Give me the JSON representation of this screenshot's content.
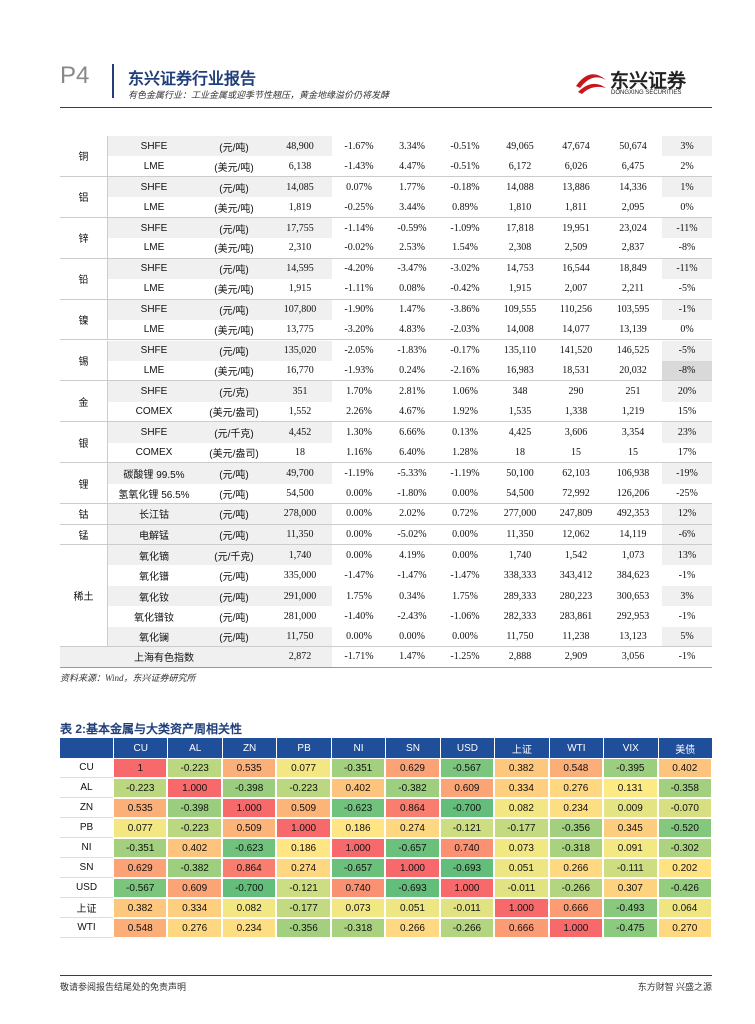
{
  "header": {
    "page": "P4",
    "title": "东兴证券行业报告",
    "subtitle": "有色金属行业：工业金属或迎季节性翘压，黄金地缘溢价仍将发酵",
    "logo_text": "东兴证券",
    "logo_sub": "DONGXING SECURITIES"
  },
  "table1": {
    "groups": [
      {
        "label": "铜",
        "rows": [
          [
            "SHFE",
            "(元/吨)",
            "48,900",
            "-1.67%",
            "3.34%",
            "-0.51%",
            "49,065",
            "47,674",
            "50,674",
            "3%"
          ],
          [
            "LME",
            "(美元/吨)",
            "6,138",
            "-1.43%",
            "4.47%",
            "-0.51%",
            "6,172",
            "6,026",
            "6,475",
            "2%"
          ]
        ]
      },
      {
        "label": "铝",
        "rows": [
          [
            "SHFE",
            "(元/吨)",
            "14,085",
            "0.07%",
            "1.77%",
            "-0.18%",
            "14,088",
            "13,886",
            "14,336",
            "1%"
          ],
          [
            "LME",
            "(美元/吨)",
            "1,819",
            "-0.25%",
            "3.44%",
            "0.89%",
            "1,810",
            "1,811",
            "2,095",
            "0%"
          ]
        ]
      },
      {
        "label": "锌",
        "rows": [
          [
            "SHFE",
            "(元/吨)",
            "17,755",
            "-1.14%",
            "-0.59%",
            "-1.09%",
            "17,818",
            "19,951",
            "23,024",
            "-11%"
          ],
          [
            "LME",
            "(美元/吨)",
            "2,310",
            "-0.02%",
            "2.53%",
            "1.54%",
            "2,308",
            "2,509",
            "2,837",
            "-8%"
          ]
        ]
      },
      {
        "label": "铅",
        "rows": [
          [
            "SHFE",
            "(元/吨)",
            "14,595",
            "-4.20%",
            "-3.47%",
            "-3.02%",
            "14,753",
            "16,544",
            "18,849",
            "-11%"
          ],
          [
            "LME",
            "(美元/吨)",
            "1,915",
            "-1.11%",
            "0.08%",
            "-0.42%",
            "1,915",
            "2,007",
            "2,211",
            "-5%"
          ]
        ]
      },
      {
        "label": "镍",
        "rows": [
          [
            "SHFE",
            "(元/吨)",
            "107,800",
            "-1.90%",
            "1.47%",
            "-3.86%",
            "109,555",
            "110,256",
            "103,595",
            "-1%"
          ],
          [
            "LME",
            "(美元/吨)",
            "13,775",
            "-3.20%",
            "4.83%",
            "-2.03%",
            "14,008",
            "14,077",
            "13,139",
            "0%"
          ]
        ]
      },
      {
        "label": "锡",
        "rows": [
          [
            "SHFE",
            "(元/吨)",
            "135,020",
            "-2.05%",
            "-1.83%",
            "-0.17%",
            "135,110",
            "141,520",
            "146,525",
            "-5%"
          ],
          [
            "LME",
            "(美元/吨)",
            "16,770",
            "-1.93%",
            "0.24%",
            "-2.16%",
            "16,983",
            "18,531",
            "20,032",
            "-8%"
          ]
        ]
      },
      {
        "label": "金",
        "rows": [
          [
            "SHFE",
            "(元/克)",
            "351",
            "1.70%",
            "2.81%",
            "1.06%",
            "348",
            "290",
            "251",
            "20%"
          ],
          [
            "COMEX",
            "(美元/盎司)",
            "1,552",
            "2.26%",
            "4.67%",
            "1.92%",
            "1,535",
            "1,338",
            "1,219",
            "15%"
          ]
        ]
      },
      {
        "label": "银",
        "rows": [
          [
            "SHFE",
            "(元/千克)",
            "4,452",
            "1.30%",
            "6.66%",
            "0.13%",
            "4,425",
            "3,606",
            "3,354",
            "23%"
          ],
          [
            "COMEX",
            "(美元/盎司)",
            "18",
            "1.16%",
            "6.40%",
            "1.28%",
            "18",
            "15",
            "15",
            "17%"
          ]
        ]
      },
      {
        "label": "锂",
        "rows": [
          [
            "碳酸锂 99.5%",
            "(元/吨)",
            "49,700",
            "-1.19%",
            "-5.33%",
            "-1.19%",
            "50,100",
            "62,103",
            "106,938",
            "-19%"
          ],
          [
            "氢氧化锂 56.5%",
            "(元/吨)",
            "54,500",
            "0.00%",
            "-1.80%",
            "0.00%",
            "54,500",
            "72,992",
            "126,206",
            "-25%"
          ]
        ]
      },
      {
        "label": "钴",
        "rows": [
          [
            "长江钴",
            "(元/吨)",
            "278,000",
            "0.00%",
            "2.02%",
            "0.72%",
            "277,000",
            "247,809",
            "492,353",
            "12%"
          ]
        ]
      },
      {
        "label": "锰",
        "rows": [
          [
            "电解锰",
            "(元/吨)",
            "11,350",
            "0.00%",
            "-5.02%",
            "0.00%",
            "11,350",
            "12,062",
            "14,119",
            "-6%"
          ]
        ]
      },
      {
        "label": "稀土",
        "rows": [
          [
            "氧化镝",
            "(元/千克)",
            "1,740",
            "0.00%",
            "4.19%",
            "0.00%",
            "1,740",
            "1,542",
            "1,073",
            "13%"
          ],
          [
            "氧化镨",
            "(元/吨)",
            "335,000",
            "-1.47%",
            "-1.47%",
            "-1.47%",
            "338,333",
            "343,412",
            "384,623",
            "-1%"
          ],
          [
            "氧化钕",
            "(元/吨)",
            "291,000",
            "1.75%",
            "0.34%",
            "1.75%",
            "289,333",
            "280,223",
            "300,653",
            "3%"
          ],
          [
            "氧化镨钕",
            "(元/吨)",
            "281,000",
            "-1.40%",
            "-2.43%",
            "-1.06%",
            "282,333",
            "283,861",
            "292,953",
            "-1%"
          ],
          [
            "氧化镧",
            "(元/吨)",
            "11,750",
            "0.00%",
            "0.00%",
            "0.00%",
            "11,750",
            "11,238",
            "13,123",
            "5%"
          ]
        ]
      }
    ],
    "index_row": {
      "label": "上海有色指数",
      "values": [
        "2,872",
        "-1.71%",
        "1.47%",
        "-1.25%",
        "2,888",
        "2,909",
        "3,056",
        "-1%"
      ]
    },
    "source": "资料来源：Wind，东兴证券研究所"
  },
  "table2": {
    "title": "表 2:基本金属与大类资产周相关性",
    "columns": [
      "CU",
      "AL",
      "ZN",
      "PB",
      "NI",
      "SN",
      "USD",
      "上证",
      "WTI",
      "VIX",
      "美债"
    ],
    "heatmap_colors": {
      "low": "#63be7b",
      "mid": "#ffeb84",
      "high": "#f8696b"
    },
    "rows": [
      {
        "label": "CU",
        "values": [
          "1",
          "-0.223",
          "0.535",
          "0.077",
          "-0.351",
          "0.629",
          "-0.567",
          "0.382",
          "0.548",
          "-0.395",
          "0.402"
        ]
      },
      {
        "label": "AL",
        "values": [
          "-0.223",
          "1.000",
          "-0.398",
          "-0.223",
          "0.402",
          "-0.382",
          "0.609",
          "0.334",
          "0.276",
          "0.131",
          "-0.358"
        ]
      },
      {
        "label": "ZN",
        "values": [
          "0.535",
          "-0.398",
          "1.000",
          "0.509",
          "-0.623",
          "0.864",
          "-0.700",
          "0.082",
          "0.234",
          "0.009",
          "-0.070"
        ]
      },
      {
        "label": "PB",
        "values": [
          "0.077",
          "-0.223",
          "0.509",
          "1.000",
          "0.186",
          "0.274",
          "-0.121",
          "-0.177",
          "-0.356",
          "0.345",
          "-0.520"
        ]
      },
      {
        "label": "NI",
        "values": [
          "-0.351",
          "0.402",
          "-0.623",
          "0.186",
          "1.000",
          "-0.657",
          "0.740",
          "0.073",
          "-0.318",
          "0.091",
          "-0.302"
        ]
      },
      {
        "label": "SN",
        "values": [
          "0.629",
          "-0.382",
          "0.864",
          "0.274",
          "-0.657",
          "1.000",
          "-0.693",
          "0.051",
          "0.266",
          "-0.111",
          "0.202"
        ]
      },
      {
        "label": "USD",
        "values": [
          "-0.567",
          "0.609",
          "-0.700",
          "-0.121",
          "0.740",
          "-0.693",
          "1.000",
          "-0.011",
          "-0.266",
          "0.307",
          "-0.426"
        ]
      },
      {
        "label": "上证",
        "values": [
          "0.382",
          "0.334",
          "0.082",
          "-0.177",
          "0.073",
          "0.051",
          "-0.011",
          "1.000",
          "0.666",
          "-0.493",
          "0.064"
        ]
      },
      {
        "label": "WTI",
        "values": [
          "0.548",
          "0.276",
          "0.234",
          "-0.356",
          "-0.318",
          "0.266",
          "-0.266",
          "0.666",
          "1.000",
          "-0.475",
          "0.270"
        ]
      }
    ]
  },
  "footer": {
    "left": "敬请参阅报告结尾处的免责声明",
    "right": "东方财智 兴盛之源"
  }
}
